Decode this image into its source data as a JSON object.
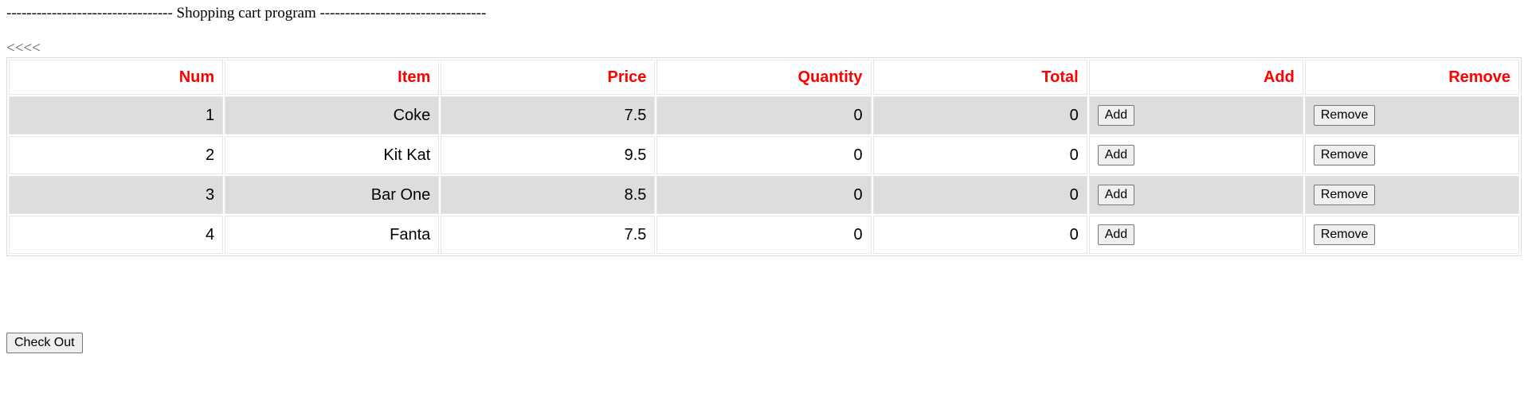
{
  "header": {
    "title_line": "--------------------------------- Shopping cart program ---------------------------------",
    "back_link": "<<<<"
  },
  "table": {
    "columns": [
      "Num",
      "Item",
      "Price",
      "Quantity",
      "Total",
      "Add",
      "Remove"
    ],
    "rows": [
      {
        "num": "1",
        "item": "Coke",
        "price": "7.5",
        "quantity": "0",
        "total": "0",
        "add_label": "Add",
        "remove_label": "Remove"
      },
      {
        "num": "2",
        "item": "Kit Kat",
        "price": "9.5",
        "quantity": "0",
        "total": "0",
        "add_label": "Add",
        "remove_label": "Remove"
      },
      {
        "num": "3",
        "item": "Bar One",
        "price": "8.5",
        "quantity": "0",
        "total": "0",
        "add_label": "Add",
        "remove_label": "Remove"
      },
      {
        "num": "4",
        "item": "Fanta",
        "price": "7.5",
        "quantity": "0",
        "total": "0",
        "add_label": "Add",
        "remove_label": "Remove"
      }
    ]
  },
  "footer": {
    "checkout_label": "Check Out"
  },
  "colors": {
    "header_text": "#ff0000",
    "odd_row_bg": "#dddddd",
    "even_row_bg": "#ffffff"
  }
}
